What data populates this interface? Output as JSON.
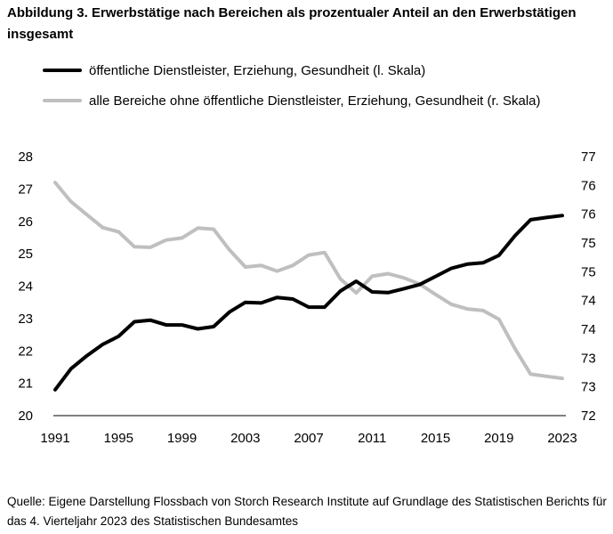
{
  "title": "Abbildung 3. Erwerbstätige nach Bereichen als prozentualer Anteil an den Erwerbstätigen insgesamt",
  "legend": [
    {
      "label": "öffentliche Dienstleister, Erziehung, Gesundheit (l. Skala)",
      "color": "#000000"
    },
    {
      "label": "alle Bereiche ohne öffentliche Dienstleister, Erziehung, Gesundheit (r. Skala)",
      "color": "#bfbfbf"
    }
  ],
  "source": "Quelle: Eigene Darstellung Flossbach von Storch Research Institute auf Grundlage des Statistischen Berichts für das 4. Vierteljahr 2023 des Statistischen Bundesamtes",
  "chart_data": {
    "type": "line",
    "x": [
      1991,
      1992,
      1993,
      1994,
      1995,
      1996,
      1997,
      1998,
      1999,
      2000,
      2001,
      2002,
      2003,
      2004,
      2005,
      2006,
      2007,
      2008,
      2009,
      2010,
      2011,
      2012,
      2013,
      2014,
      2015,
      2016,
      2017,
      2018,
      2019,
      2020,
      2021,
      2022,
      2023
    ],
    "x_ticks": [
      "1991",
      "1995",
      "1999",
      "2003",
      "2007",
      "2011",
      "2015",
      "2019",
      "2023"
    ],
    "y_left_ticks": [
      "20",
      "21",
      "22",
      "23",
      "24",
      "25",
      "26",
      "27",
      "28"
    ],
    "y_right_ticks": [
      "72",
      "73",
      "73",
      "74",
      "74",
      "75",
      "75",
      "76",
      "76",
      "77"
    ],
    "ylim_left": [
      20,
      28
    ],
    "ylim_right": [
      72,
      77
    ],
    "series": [
      {
        "name": "öffentliche Dienstleister, Erziehung, Gesundheit (l. Skala)",
        "axis": "left",
        "color": "#000000",
        "values": [
          20.8,
          21.45,
          21.85,
          22.2,
          22.45,
          22.9,
          22.95,
          22.8,
          22.8,
          22.68,
          22.75,
          23.2,
          23.5,
          23.48,
          23.65,
          23.6,
          23.35,
          23.35,
          23.85,
          24.15,
          23.82,
          23.8,
          23.92,
          24.05,
          24.3,
          24.55,
          24.68,
          24.72,
          24.95,
          25.55,
          26.05,
          26.12,
          26.18
        ]
      },
      {
        "name": "alle Bereiche ohne öffentliche Dienstleister, Erziehung, Gesundheit (r. Skala)",
        "axis": "right",
        "color": "#bfbfbf",
        "values": [
          76.5,
          76.13,
          75.88,
          75.63,
          75.55,
          75.26,
          75.25,
          75.39,
          75.43,
          75.62,
          75.6,
          75.2,
          74.87,
          74.9,
          74.79,
          74.9,
          75.1,
          75.15,
          74.64,
          74.37,
          74.69,
          74.74,
          74.66,
          74.54,
          74.34,
          74.15,
          74.06,
          74.03,
          73.86,
          73.3,
          72.8,
          72.76,
          72.72
        ]
      }
    ],
    "grid": false
  }
}
